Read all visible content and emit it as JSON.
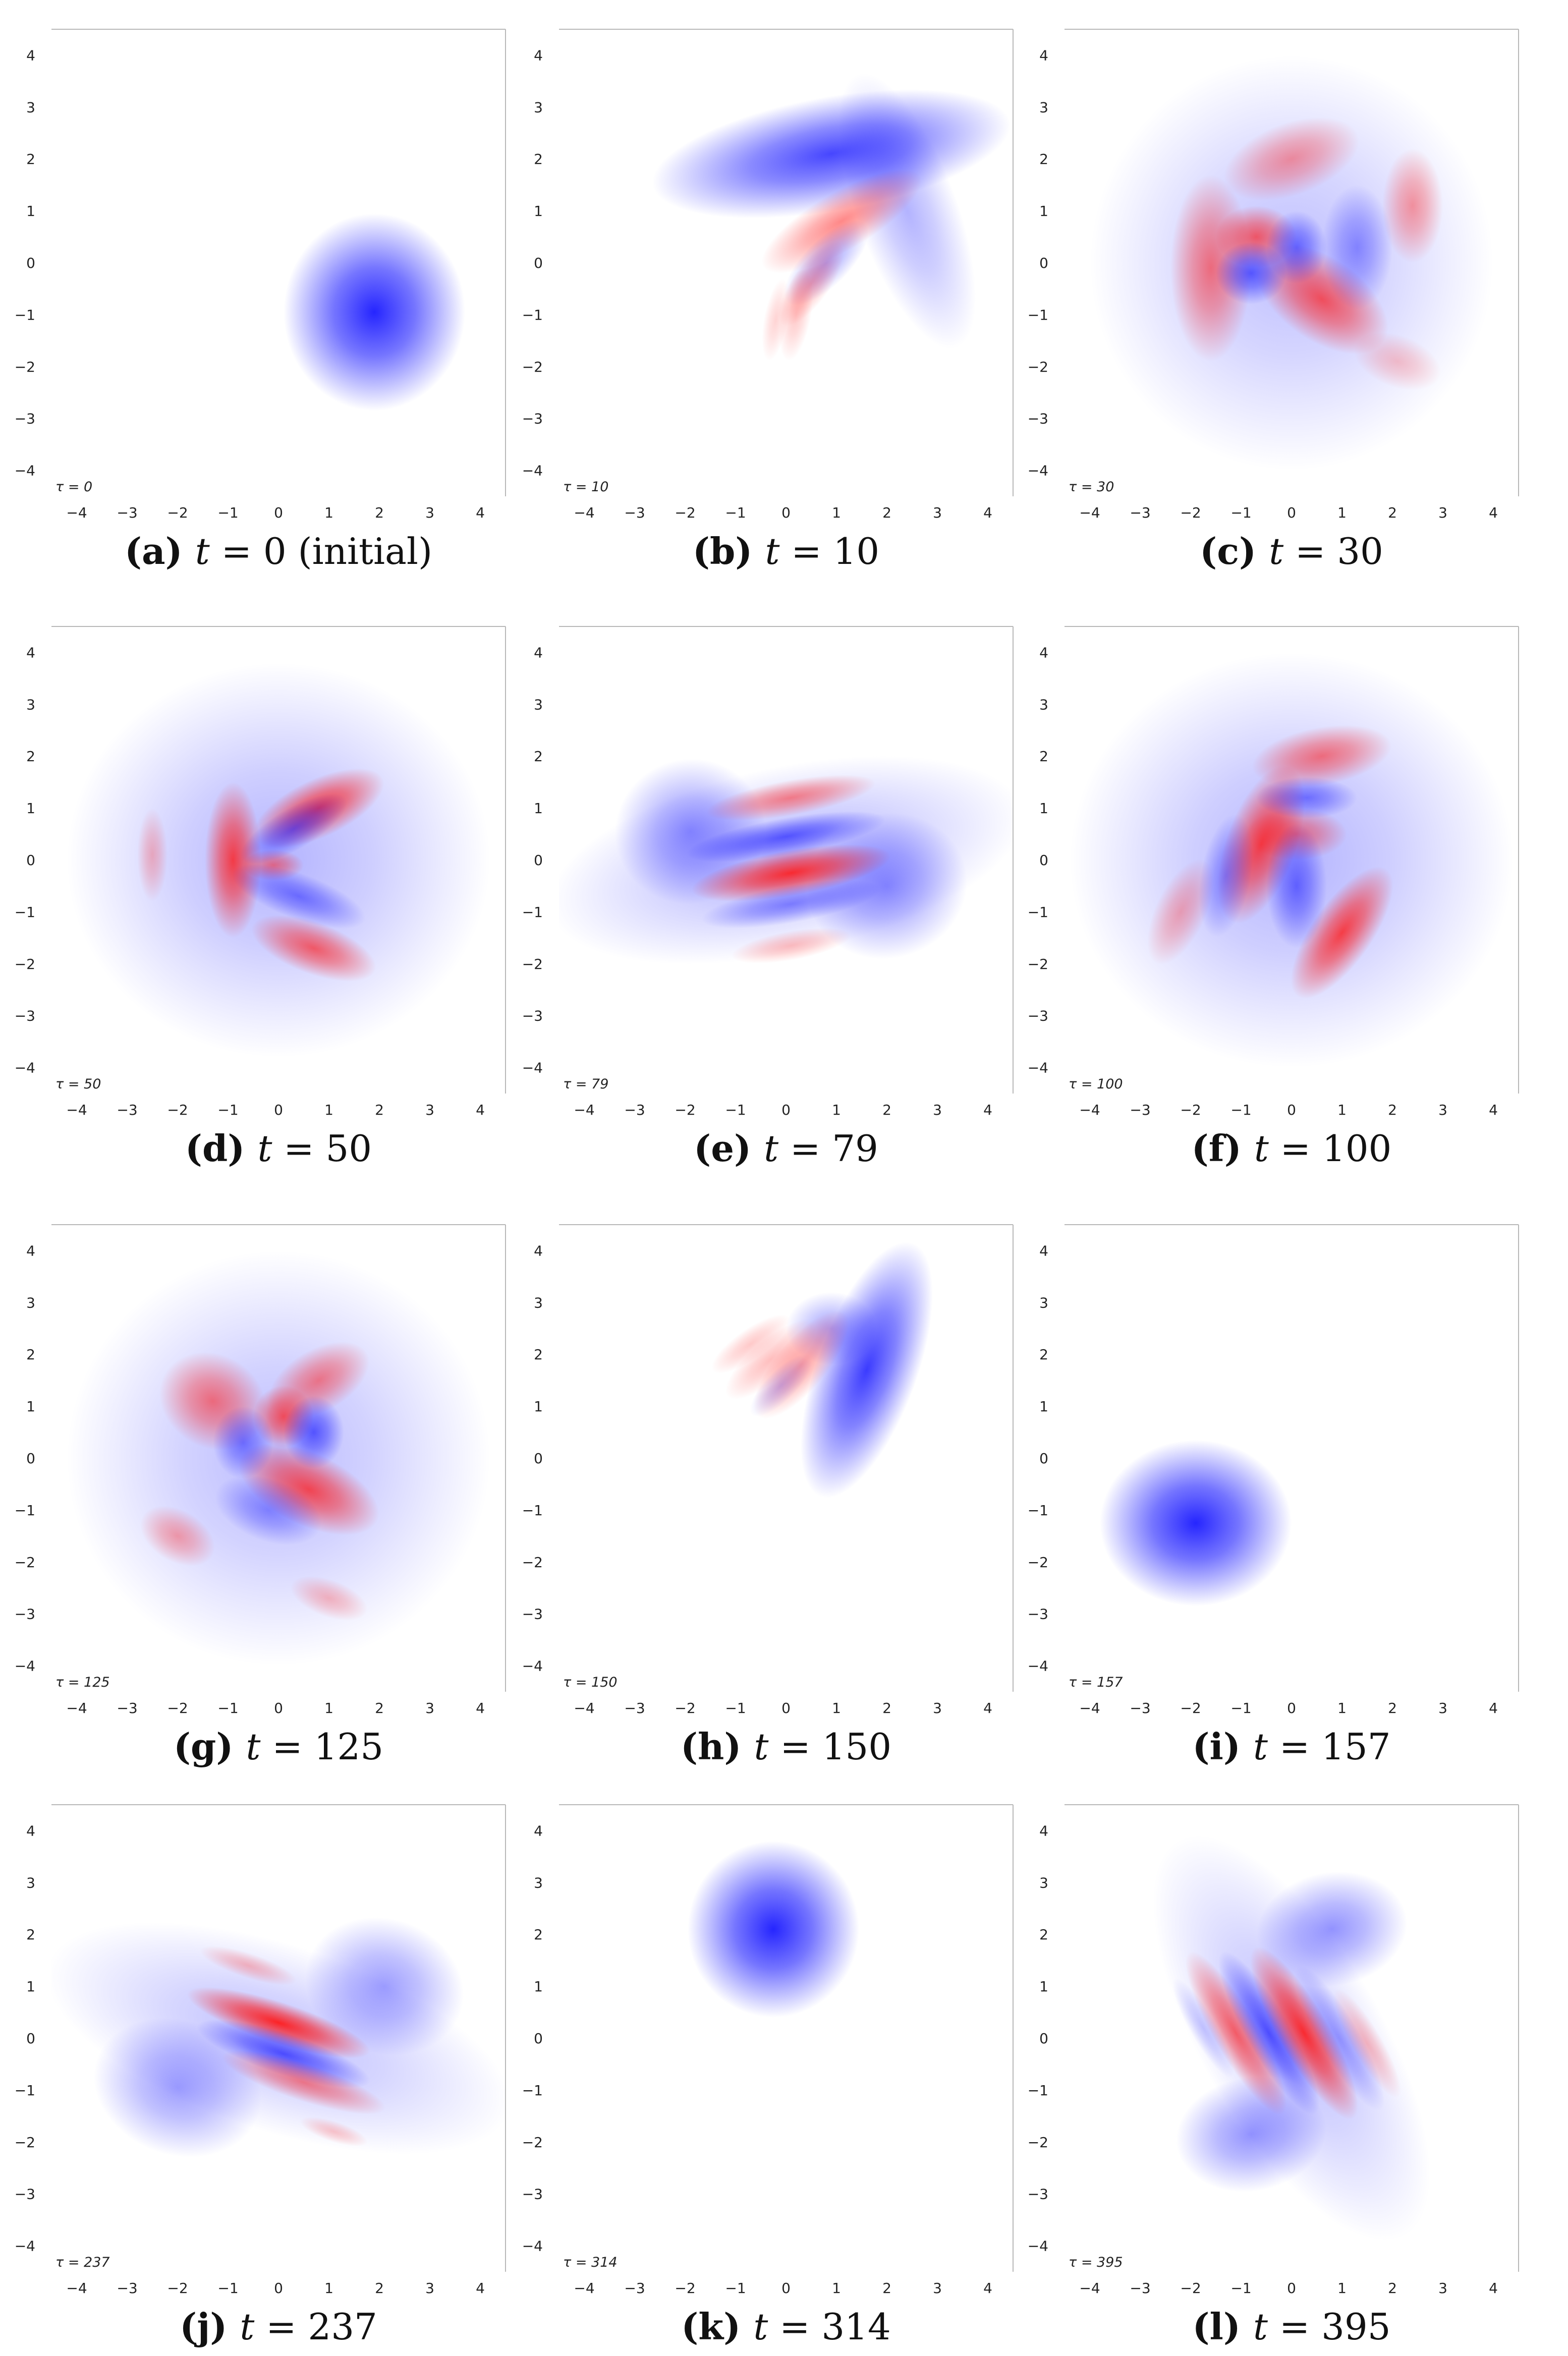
{
  "colors": {
    "positive": "#ff1a1a",
    "negative": "#1a1aff",
    "background": "#ffffff"
  },
  "chart_data": [
    {
      "type": "heatmap",
      "label": "(a)",
      "caption_var": "t",
      "caption_eq": " = ",
      "caption_value": "0",
      "caption_note": " (initial)",
      "tau": "τ = 0",
      "xlim": [
        -4.5,
        4.5
      ],
      "ylim": [
        -4.5,
        4.5
      ],
      "xticks": [
        -4,
        -3,
        -2,
        -1,
        0,
        1,
        2,
        3,
        4
      ],
      "yticks": [
        -4,
        -3,
        -2,
        -1,
        0,
        1,
        2,
        3,
        4
      ],
      "blobs": [
        {
          "x": 1.9,
          "y": -0.95,
          "sx": 0.9,
          "sy": 0.95,
          "rot": 0,
          "amp": -1.0
        }
      ]
    },
    {
      "type": "heatmap",
      "label": "(b)",
      "caption_var": "t",
      "caption_eq": " = ",
      "caption_value": "10",
      "caption_note": "",
      "tau": "τ = 10",
      "xlim": [
        -4.5,
        4.5
      ],
      "ylim": [
        -4.5,
        4.5
      ],
      "xticks": [
        -4,
        -3,
        -2,
        -1,
        0,
        1,
        2,
        3,
        4
      ],
      "yticks": [
        -4,
        -3,
        -2,
        -1,
        0,
        1,
        2,
        3,
        4
      ],
      "blobs": [
        {
          "x": 0.9,
          "y": 2.1,
          "sx": 1.8,
          "sy": 0.55,
          "rot": -10,
          "amp": -0.85
        },
        {
          "x": 2.4,
          "y": 1.0,
          "sx": 0.5,
          "sy": 1.4,
          "rot": -20,
          "amp": -0.35
        },
        {
          "x": 1.1,
          "y": 0.8,
          "sx": 0.9,
          "sy": 0.28,
          "rot": -30,
          "amp": 0.55
        },
        {
          "x": 0.8,
          "y": 0.0,
          "sx": 0.55,
          "sy": 0.22,
          "rot": -45,
          "amp": -0.4
        },
        {
          "x": 0.5,
          "y": -0.4,
          "sx": 0.5,
          "sy": 0.18,
          "rot": -55,
          "amp": 0.35
        },
        {
          "x": 0.2,
          "y": -1.0,
          "sx": 0.15,
          "sy": 0.45,
          "rot": 10,
          "amp": 0.25
        },
        {
          "x": -0.2,
          "y": -1.1,
          "sx": 0.12,
          "sy": 0.4,
          "rot": 10,
          "amp": 0.2
        }
      ]
    },
    {
      "type": "heatmap",
      "label": "(c)",
      "caption_var": "t",
      "caption_eq": " = ",
      "caption_value": "30",
      "caption_note": "",
      "tau": "τ = 30",
      "xlim": [
        -4.5,
        4.5
      ],
      "ylim": [
        -4.5,
        4.5
      ],
      "xticks": [
        -4,
        -3,
        -2,
        -1,
        0,
        1,
        2,
        3,
        4
      ],
      "yticks": [
        -4,
        -3,
        -2,
        -1,
        0,
        1,
        2,
        3,
        4
      ],
      "blobs": [
        {
          "x": 0,
          "y": 0,
          "sx": 2.0,
          "sy": 2.0,
          "rot": 0,
          "amp": -0.3
        },
        {
          "x": 0.0,
          "y": 2.0,
          "sx": 0.7,
          "sy": 0.35,
          "rot": -20,
          "amp": 0.45
        },
        {
          "x": 2.4,
          "y": 1.1,
          "sx": 0.3,
          "sy": 0.55,
          "rot": 0,
          "amp": 0.45
        },
        {
          "x": -1.6,
          "y": -0.1,
          "sx": 0.4,
          "sy": 0.9,
          "rot": 0,
          "amp": 0.6
        },
        {
          "x": -0.7,
          "y": 0.5,
          "sx": 0.4,
          "sy": 0.3,
          "rot": 0,
          "amp": 0.7
        },
        {
          "x": 0.6,
          "y": -0.7,
          "sx": 0.75,
          "sy": 0.4,
          "rot": 35,
          "amp": 0.75
        },
        {
          "x": -0.8,
          "y": -0.2,
          "sx": 0.35,
          "sy": 0.3,
          "rot": 0,
          "amp": -0.7
        },
        {
          "x": 0.1,
          "y": 0.3,
          "sx": 0.3,
          "sy": 0.35,
          "rot": 0,
          "amp": -0.6
        },
        {
          "x": 1.3,
          "y": 0.3,
          "sx": 0.35,
          "sy": 0.6,
          "rot": 0,
          "amp": -0.45
        },
        {
          "x": 2.1,
          "y": -1.9,
          "sx": 0.45,
          "sy": 0.25,
          "rot": 20,
          "amp": 0.25
        }
      ]
    },
    {
      "type": "heatmap",
      "label": "(d)",
      "caption_var": "t",
      "caption_eq": " = ",
      "caption_value": "50",
      "caption_note": "",
      "tau": "τ = 50",
      "xlim": [
        -4.5,
        4.5
      ],
      "ylim": [
        -4.5,
        4.5
      ],
      "xticks": [
        -4,
        -3,
        -2,
        -1,
        0,
        1,
        2,
        3,
        4
      ],
      "yticks": [
        -4,
        -3,
        -2,
        -1,
        0,
        1,
        2,
        3,
        4
      ],
      "blobs": [
        {
          "x": 0,
          "y": 0,
          "sx": 2.1,
          "sy": 1.9,
          "rot": 0,
          "amp": -0.35
        },
        {
          "x": 0.8,
          "y": 1.0,
          "sx": 0.7,
          "sy": 0.28,
          "rot": -25,
          "amp": 0.85
        },
        {
          "x": -0.9,
          "y": 0.0,
          "sx": 0.28,
          "sy": 0.75,
          "rot": 0,
          "amp": 0.85
        },
        {
          "x": 0.7,
          "y": -1.7,
          "sx": 0.65,
          "sy": 0.25,
          "rot": 20,
          "amp": 0.7
        },
        {
          "x": -0.1,
          "y": -0.1,
          "sx": 0.3,
          "sy": 0.15,
          "rot": 0,
          "amp": 0.55
        },
        {
          "x": 0.3,
          "y": 0.6,
          "sx": 0.6,
          "sy": 0.2,
          "rot": -30,
          "amp": -0.6
        },
        {
          "x": 0.4,
          "y": -0.7,
          "sx": 0.7,
          "sy": 0.22,
          "rot": 20,
          "amp": -0.55
        },
        {
          "x": -2.5,
          "y": 0.1,
          "sx": 0.15,
          "sy": 0.45,
          "rot": 0,
          "amp": 0.3
        }
      ]
    },
    {
      "type": "heatmap",
      "label": "(e)",
      "caption_var": "t",
      "caption_eq": " = ",
      "caption_value": "79",
      "caption_note": "",
      "tau": "τ = 79",
      "xlim": [
        -4.5,
        4.5
      ],
      "ylim": [
        -4.5,
        4.5
      ],
      "xticks": [
        -4,
        -3,
        -2,
        -1,
        0,
        1,
        2,
        3,
        4
      ],
      "yticks": [
        -4,
        -3,
        -2,
        -1,
        0,
        1,
        2,
        3,
        4
      ],
      "blobs": [
        {
          "x": -1.9,
          "y": 0.55,
          "sx": 0.75,
          "sy": 0.7,
          "rot": -15,
          "amp": -0.5
        },
        {
          "x": 2.0,
          "y": -0.5,
          "sx": 0.8,
          "sy": 0.7,
          "rot": -15,
          "amp": -0.5
        },
        {
          "x": 0,
          "y": 0,
          "sx": 2.4,
          "sy": 0.9,
          "rot": -12,
          "amp": -0.35
        },
        {
          "x": 0.1,
          "y": 1.2,
          "sx": 0.85,
          "sy": 0.17,
          "rot": -10,
          "amp": 0.55
        },
        {
          "x": 0.0,
          "y": 0.45,
          "sx": 1.0,
          "sy": 0.18,
          "rot": -10,
          "amp": -0.7
        },
        {
          "x": 0.1,
          "y": -0.25,
          "sx": 1.0,
          "sy": 0.22,
          "rot": -10,
          "amp": 0.95
        },
        {
          "x": 0.1,
          "y": -0.85,
          "sx": 0.9,
          "sy": 0.18,
          "rot": -10,
          "amp": -0.5
        },
        {
          "x": 0.1,
          "y": -1.65,
          "sx": 0.6,
          "sy": 0.14,
          "rot": -10,
          "amp": 0.3
        }
      ]
    },
    {
      "type": "heatmap",
      "label": "(f)",
      "caption_var": "t",
      "caption_eq": " = ",
      "caption_value": "100",
      "caption_note": "",
      "tau": "τ = 100",
      "xlim": [
        -4.5,
        4.5
      ],
      "ylim": [
        -4.5,
        4.5
      ],
      "xticks": [
        -4,
        -3,
        -2,
        -1,
        0,
        1,
        2,
        3,
        4
      ],
      "yticks": [
        -4,
        -3,
        -2,
        -1,
        0,
        1,
        2,
        3,
        4
      ],
      "blobs": [
        {
          "x": 0,
          "y": 0,
          "sx": 2.2,
          "sy": 2.0,
          "rot": 0,
          "amp": -0.35
        },
        {
          "x": 0.6,
          "y": 2.0,
          "sx": 0.7,
          "sy": 0.28,
          "rot": -10,
          "amp": 0.6
        },
        {
          "x": -0.6,
          "y": 0.3,
          "sx": 0.35,
          "sy": 0.8,
          "rot": 20,
          "amp": 0.85
        },
        {
          "x": 1.0,
          "y": -1.4,
          "sx": 0.3,
          "sy": 0.75,
          "rot": 35,
          "amp": 0.85
        },
        {
          "x": 0.1,
          "y": 0.5,
          "sx": 0.5,
          "sy": 0.25,
          "rot": 0,
          "amp": 0.55
        },
        {
          "x": -2.2,
          "y": -1.0,
          "sx": 0.25,
          "sy": 0.55,
          "rot": 25,
          "amp": 0.35
        },
        {
          "x": 0.1,
          "y": -0.5,
          "sx": 0.3,
          "sy": 0.6,
          "rot": 0,
          "amp": -0.6
        },
        {
          "x": 0.3,
          "y": 1.2,
          "sx": 0.5,
          "sy": 0.2,
          "rot": 0,
          "amp": -0.55
        },
        {
          "x": -1.3,
          "y": -0.3,
          "sx": 0.25,
          "sy": 0.6,
          "rot": 10,
          "amp": -0.45
        }
      ]
    },
    {
      "type": "heatmap",
      "label": "(g)",
      "caption_var": "t",
      "caption_eq": " = ",
      "caption_value": "125",
      "caption_note": "",
      "tau": "τ = 125",
      "xlim": [
        -4.5,
        4.5
      ],
      "ylim": [
        -4.5,
        4.5
      ],
      "xticks": [
        -4,
        -3,
        -2,
        -1,
        0,
        1,
        2,
        3,
        4
      ],
      "yticks": [
        -4,
        -3,
        -2,
        -1,
        0,
        1,
        2,
        3,
        4
      ],
      "blobs": [
        {
          "x": 0,
          "y": 0,
          "sx": 2.1,
          "sy": 2.0,
          "rot": 0,
          "amp": -0.32
        },
        {
          "x": -1.3,
          "y": 1.1,
          "sx": 0.55,
          "sy": 0.45,
          "rot": 30,
          "amp": 0.6
        },
        {
          "x": 0.8,
          "y": 1.5,
          "sx": 0.55,
          "sy": 0.3,
          "rot": -30,
          "amp": 0.55
        },
        {
          "x": 0.1,
          "y": 0.8,
          "sx": 0.3,
          "sy": 0.3,
          "rot": 0,
          "amp": 0.75
        },
        {
          "x": 0.6,
          "y": -0.6,
          "sx": 0.75,
          "sy": 0.35,
          "rot": 25,
          "amp": 0.8
        },
        {
          "x": -2.0,
          "y": -1.5,
          "sx": 0.4,
          "sy": 0.25,
          "rot": 30,
          "amp": 0.4
        },
        {
          "x": 1.0,
          "y": -2.7,
          "sx": 0.4,
          "sy": 0.18,
          "rot": 20,
          "amp": 0.3
        },
        {
          "x": 0.7,
          "y": 0.5,
          "sx": 0.3,
          "sy": 0.35,
          "rot": 0,
          "amp": -0.7
        },
        {
          "x": -0.7,
          "y": 0.3,
          "sx": 0.3,
          "sy": 0.35,
          "rot": 0,
          "amp": -0.55
        },
        {
          "x": -0.2,
          "y": -1.0,
          "sx": 0.55,
          "sy": 0.3,
          "rot": 20,
          "amp": -0.45
        }
      ]
    },
    {
      "type": "heatmap",
      "label": "(h)",
      "caption_var": "t",
      "caption_eq": " = ",
      "caption_value": "150",
      "caption_note": "",
      "tau": "τ = 150",
      "xlim": [
        -4.5,
        4.5
      ],
      "ylim": [
        -4.5,
        4.5
      ],
      "xticks": [
        -4,
        -3,
        -2,
        -1,
        0,
        1,
        2,
        3,
        4
      ],
      "yticks": [
        -4,
        -3,
        -2,
        -1,
        0,
        1,
        2,
        3,
        4
      ],
      "blobs": [
        {
          "x": 1.6,
          "y": 1.7,
          "sx": 0.5,
          "sy": 1.3,
          "rot": 20,
          "amp": -0.9
        },
        {
          "x": 0.9,
          "y": 2.5,
          "sx": 0.45,
          "sy": 0.35,
          "rot": 0,
          "amp": -0.4
        },
        {
          "x": 0.3,
          "y": 1.8,
          "sx": 0.25,
          "sy": 0.65,
          "rot": 40,
          "amp": 0.45
        },
        {
          "x": -0.3,
          "y": 1.9,
          "sx": 0.2,
          "sy": 0.55,
          "rot": 50,
          "amp": 0.3
        },
        {
          "x": -0.7,
          "y": 2.2,
          "sx": 0.15,
          "sy": 0.45,
          "rot": 55,
          "amp": 0.25
        },
        {
          "x": -0.1,
          "y": 1.4,
          "sx": 0.15,
          "sy": 0.4,
          "rot": 45,
          "amp": -0.25
        }
      ]
    },
    {
      "type": "heatmap",
      "label": "(i)",
      "caption_var": "t",
      "caption_eq": " = ",
      "caption_value": "157",
      "caption_note": "",
      "tau": "τ = 157",
      "xlim": [
        -4.5,
        4.5
      ],
      "ylim": [
        -4.5,
        4.5
      ],
      "xticks": [
        -4,
        -3,
        -2,
        -1,
        0,
        1,
        2,
        3,
        4
      ],
      "yticks": [
        -4,
        -3,
        -2,
        -1,
        0,
        1,
        2,
        3,
        4
      ],
      "blobs": [
        {
          "x": -1.9,
          "y": -1.25,
          "sx": 0.95,
          "sy": 0.8,
          "rot": 0,
          "amp": -1.0
        }
      ]
    },
    {
      "type": "heatmap",
      "label": "(j)",
      "caption_var": "t",
      "caption_eq": " = ",
      "caption_value": "237",
      "caption_note": "",
      "tau": "τ = 237",
      "xlim": [
        -4.5,
        4.5
      ],
      "ylim": [
        -4.5,
        4.5
      ],
      "xticks": [
        -4,
        -3,
        -2,
        -1,
        0,
        1,
        2,
        3,
        4
      ],
      "yticks": [
        -4,
        -3,
        -2,
        -1,
        0,
        1,
        2,
        3,
        4
      ],
      "blobs": [
        {
          "x": -2.0,
          "y": -0.95,
          "sx": 0.85,
          "sy": 0.65,
          "rot": 20,
          "amp": -0.45
        },
        {
          "x": 2.1,
          "y": 1.0,
          "sx": 0.8,
          "sy": 0.65,
          "rot": 20,
          "amp": -0.45
        },
        {
          "x": 0,
          "y": 0,
          "sx": 2.4,
          "sy": 0.9,
          "rot": 18,
          "amp": -0.3
        },
        {
          "x": 0.0,
          "y": 0.3,
          "sx": 0.95,
          "sy": 0.2,
          "rot": 18,
          "amp": 1.0
        },
        {
          "x": 0.1,
          "y": -0.3,
          "sx": 0.9,
          "sy": 0.2,
          "rot": 18,
          "amp": -0.75
        },
        {
          "x": 0.5,
          "y": -0.85,
          "sx": 0.85,
          "sy": 0.18,
          "rot": 18,
          "amp": 0.55
        },
        {
          "x": -0.6,
          "y": 1.4,
          "sx": 0.5,
          "sy": 0.12,
          "rot": 18,
          "amp": 0.3
        },
        {
          "x": 1.1,
          "y": -1.8,
          "sx": 0.35,
          "sy": 0.1,
          "rot": 18,
          "amp": 0.25
        }
      ]
    },
    {
      "type": "heatmap",
      "label": "(k)",
      "caption_var": "t",
      "caption_eq": " = ",
      "caption_value": "314",
      "caption_note": "",
      "tau": "τ = 314",
      "xlim": [
        -4.5,
        4.5
      ],
      "ylim": [
        -4.5,
        4.5
      ],
      "xticks": [
        -4,
        -3,
        -2,
        -1,
        0,
        1,
        2,
        3,
        4
      ],
      "yticks": [
        -4,
        -3,
        -2,
        -1,
        0,
        1,
        2,
        3,
        4
      ],
      "blobs": [
        {
          "x": -0.25,
          "y": 2.1,
          "sx": 0.85,
          "sy": 0.85,
          "rot": 0,
          "amp": -1.0
        }
      ]
    },
    {
      "type": "heatmap",
      "label": "(l)",
      "caption_var": "t",
      "caption_eq": " = ",
      "caption_value": "395",
      "caption_note": "",
      "tau": "τ = 395",
      "xlim": [
        -4.5,
        4.5
      ],
      "ylim": [
        -4.5,
        4.5
      ],
      "xticks": [
        -4,
        -3,
        -2,
        -1,
        0,
        1,
        2,
        3,
        4
      ],
      "yticks": [
        -4,
        -3,
        -2,
        -1,
        0,
        1,
        2,
        3,
        4
      ],
      "blobs": [
        {
          "x": 0.8,
          "y": 2.1,
          "sx": 0.75,
          "sy": 0.55,
          "rot": -10,
          "amp": -0.5
        },
        {
          "x": -0.8,
          "y": -1.85,
          "sx": 0.75,
          "sy": 0.55,
          "rot": -10,
          "amp": -0.5
        },
        {
          "x": 0,
          "y": 0,
          "sx": 0.9,
          "sy": 2.2,
          "rot": -30,
          "amp": -0.3
        },
        {
          "x": -1.1,
          "y": 0.1,
          "sx": 0.22,
          "sy": 0.9,
          "rot": -30,
          "amp": 0.7
        },
        {
          "x": -0.45,
          "y": 0.1,
          "sx": 0.22,
          "sy": 0.9,
          "rot": -30,
          "amp": -0.75
        },
        {
          "x": 0.25,
          "y": 0.1,
          "sx": 0.25,
          "sy": 0.95,
          "rot": -30,
          "amp": 0.95
        },
        {
          "x": 0.95,
          "y": 0.0,
          "sx": 0.2,
          "sy": 0.8,
          "rot": -30,
          "amp": -0.4
        },
        {
          "x": 1.5,
          "y": -0.1,
          "sx": 0.15,
          "sy": 0.6,
          "rot": -30,
          "amp": 0.3
        },
        {
          "x": -1.75,
          "y": 0.2,
          "sx": 0.13,
          "sy": 0.55,
          "rot": -30,
          "amp": -0.25
        }
      ]
    }
  ]
}
